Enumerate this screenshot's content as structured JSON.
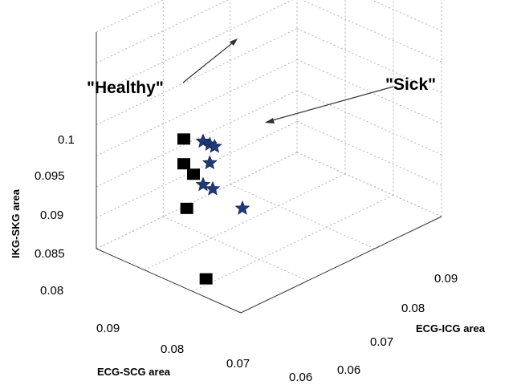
{
  "chart_data": {
    "type": "scatter",
    "title": "",
    "axes": {
      "x": {
        "label": "ECG-SCG area",
        "ticks": [
          "0.09",
          "0.08",
          "0.07",
          "0.06"
        ]
      },
      "y": {
        "label": "ECG-ICG area",
        "ticks": [
          "0.06",
          "0.07",
          "0.08",
          "0.09"
        ]
      },
      "z": {
        "label": "IKG-SKG area",
        "ticks": [
          "0.08",
          "0.085",
          "0.09",
          "0.095",
          "0.1"
        ]
      }
    },
    "grid": true,
    "series": [
      {
        "marker": "square",
        "color": "#000000",
        "points": [
          {
            "ecg_scg": 0.087,
            "ecg_icg": 0.095,
            "ikg_skg": 0.11
          },
          {
            "ecg_scg": 0.082,
            "ecg_icg": 0.092,
            "ikg_skg": 0.108
          },
          {
            "ecg_scg": 0.076,
            "ecg_icg": 0.063,
            "ikg_skg": 0.096
          },
          {
            "ecg_scg": 0.076,
            "ecg_icg": 0.063,
            "ikg_skg": 0.092
          },
          {
            "ecg_scg": 0.074,
            "ecg_icg": 0.063,
            "ikg_skg": 0.091
          },
          {
            "ecg_scg": 0.074,
            "ecg_icg": 0.062,
            "ikg_skg": 0.086
          },
          {
            "ecg_scg": 0.07,
            "ecg_icg": 0.062,
            "ikg_skg": 0.076
          }
        ]
      },
      {
        "marker": "star",
        "color": "#1f3a78",
        "points": [
          {
            "ecg_scg": 0.072,
            "ecg_icg": 0.063,
            "ikg_skg": 0.097
          },
          {
            "ecg_scg": 0.072,
            "ecg_icg": 0.064,
            "ikg_skg": 0.096
          },
          {
            "ecg_scg": 0.071,
            "ecg_icg": 0.064,
            "ikg_skg": 0.096
          },
          {
            "ecg_scg": 0.072,
            "ecg_icg": 0.064,
            "ikg_skg": 0.093
          },
          {
            "ecg_scg": 0.072,
            "ecg_icg": 0.063,
            "ikg_skg": 0.09
          },
          {
            "ecg_scg": 0.07,
            "ecg_icg": 0.063,
            "ikg_skg": 0.09
          },
          {
            "ecg_scg": 0.068,
            "ecg_icg": 0.066,
            "ikg_skg": 0.086
          }
        ]
      }
    ],
    "annotations": [
      {
        "text": "\"Healthy\""
      },
      {
        "text": "\"Sick\""
      }
    ]
  }
}
